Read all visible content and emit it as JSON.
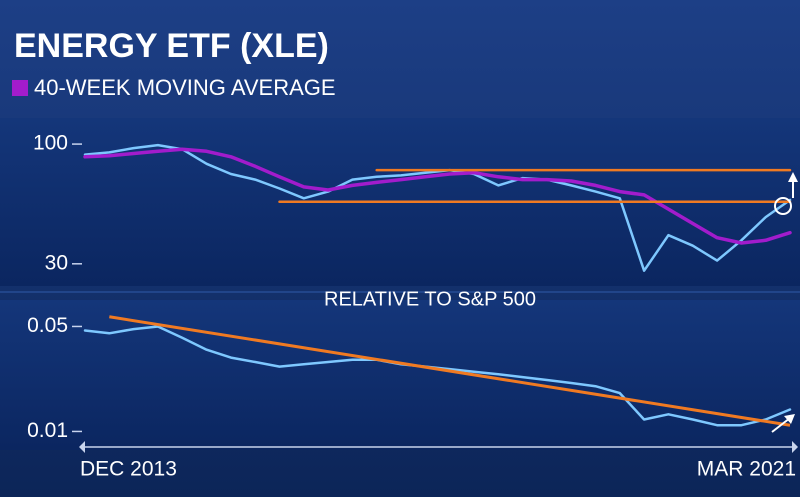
{
  "chart_data": [
    {
      "type": "line",
      "title": "ENERGY ETF (XLE)",
      "log_scale": true,
      "ylim": [
        24,
        130
      ],
      "yticks": [
        100,
        30
      ],
      "series": [
        {
          "color": "#7ec8ff",
          "values": [
            90,
            92,
            96,
            99,
            95,
            82,
            74,
            70,
            64,
            58,
            62,
            70,
            72,
            73,
            75,
            77,
            74,
            66,
            71,
            70,
            66,
            62,
            58,
            28,
            40,
            36,
            31,
            38,
            48,
            57
          ]
        },
        {
          "name": "40-WEEK MOVING AVERAGE",
          "color": "#a21ccc",
          "values": [
            88,
            89,
            91,
            93,
            95,
            93,
            88,
            80,
            72,
            65,
            63,
            66,
            68,
            70,
            72,
            74,
            75,
            72,
            70,
            70,
            69,
            66,
            62,
            60,
            52,
            45,
            39,
            37,
            38,
            41
          ]
        },
        {
          "color": "#f07a22",
          "values": [
            null,
            null,
            null,
            null,
            null,
            null,
            null,
            null,
            null,
            null,
            null,
            null,
            77,
            77,
            77,
            77,
            77,
            77,
            77,
            77,
            77,
            77,
            77,
            77,
            77,
            77,
            77,
            77,
            77,
            77
          ]
        },
        {
          "color": "#f07a22",
          "values": [
            null,
            null,
            null,
            null,
            null,
            null,
            null,
            null,
            56,
            56,
            56,
            56,
            56,
            56,
            56,
            56,
            56,
            56,
            56,
            56,
            56,
            56,
            56,
            56,
            56,
            56,
            56,
            56,
            56,
            56
          ]
        }
      ]
    },
    {
      "type": "line",
      "title": "RELATIVE TO S&P 500",
      "log_scale": true,
      "ylim": [
        0.008,
        0.075
      ],
      "yticks": [
        0.05,
        0.01
      ],
      "categories": [
        "DEC 2013",
        null,
        null,
        null,
        null,
        null,
        null,
        null,
        null,
        null,
        null,
        null,
        null,
        null,
        null,
        null,
        null,
        null,
        null,
        null,
        null,
        null,
        null,
        null,
        null,
        null,
        null,
        null,
        null,
        "MAR 2021"
      ],
      "series": [
        {
          "color": "#7ec8ff",
          "values": [
            0.047,
            0.045,
            0.048,
            0.05,
            0.042,
            0.035,
            0.031,
            0.029,
            0.027,
            0.028,
            0.029,
            0.03,
            0.03,
            0.028,
            0.027,
            0.026,
            0.025,
            0.024,
            0.023,
            0.022,
            0.021,
            0.02,
            0.018,
            0.012,
            0.013,
            0.012,
            0.011,
            0.011,
            0.012,
            0.014
          ]
        }
      ],
      "trendline": {
        "x": [
          1,
          29
        ],
        "values": [
          0.058,
          0.011
        ],
        "color": "#f07a22"
      }
    }
  ]
}
